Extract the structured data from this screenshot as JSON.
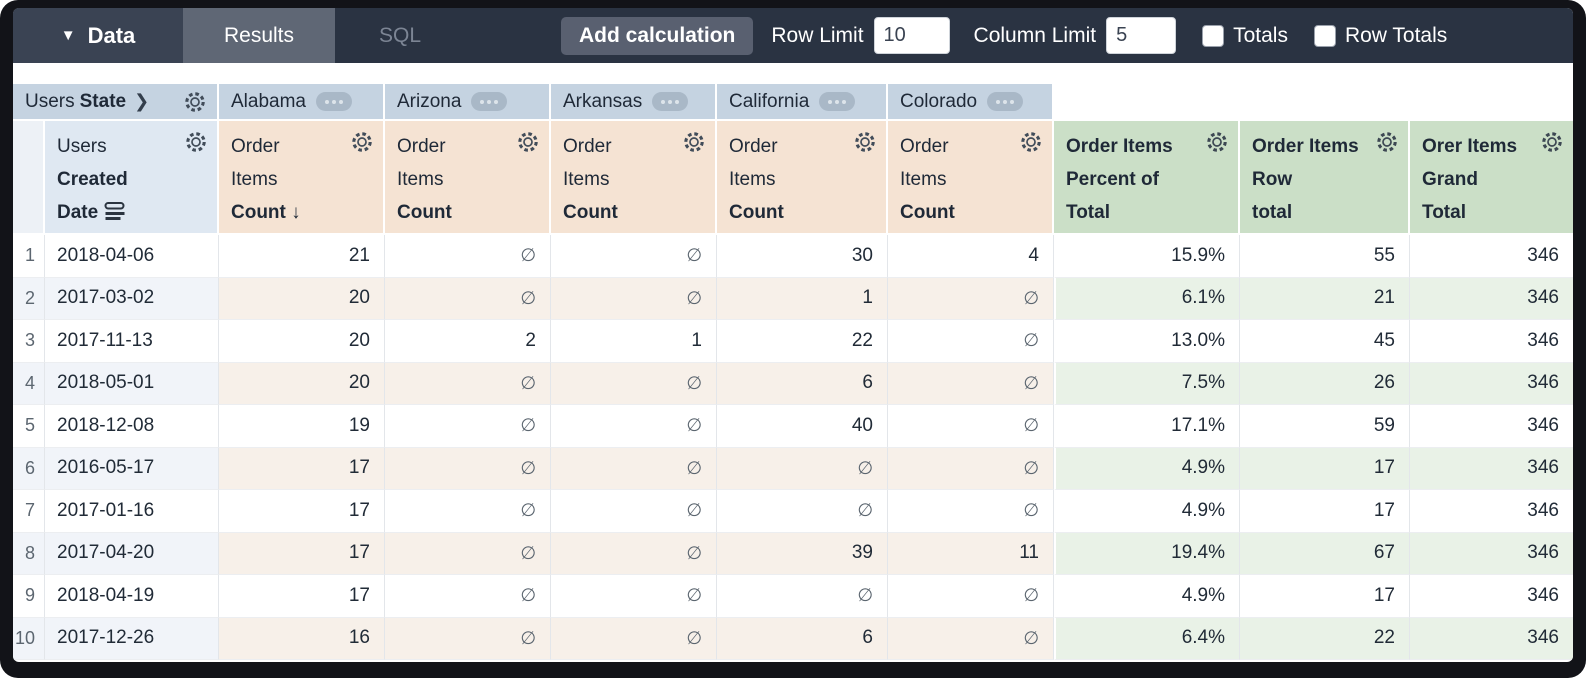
{
  "toolbar": {
    "data_label": "Data",
    "tabs": {
      "results": "Results",
      "sql": "SQL"
    },
    "add_calculation_label": "Add calculation",
    "row_limit_label": "Row Limit",
    "row_limit_value": "10",
    "column_limit_label": "Column Limit",
    "column_limit_value": "5",
    "totals_label": "Totals",
    "row_totals_label": "Row Totals",
    "totals_checked": false,
    "row_totals_checked": false
  },
  "pivot": {
    "dimension_plain": "Users",
    "dimension_bold": "State",
    "chevron": "❯",
    "states": [
      "Alabama",
      "Arizona",
      "Arkansas",
      "California",
      "Colorado"
    ]
  },
  "columns": {
    "row_dimension": {
      "line1": "Users",
      "line2": "Created",
      "line3": "Date"
    },
    "measure": {
      "line1": "Order",
      "line2": "Items",
      "line3": "Count"
    },
    "sort_arrow": "↓",
    "calc_columns": [
      {
        "line1": "Order Items",
        "line2": "Percent of",
        "line3": "Total"
      },
      {
        "line1": "Order Items",
        "line2": "Row",
        "line3": "total"
      },
      {
        "line1": "Orer Items",
        "line2": "Grand",
        "line3": "Total"
      }
    ]
  },
  "table": {
    "null_symbol": "∅",
    "rows": [
      {
        "n": "1",
        "date": "2018-04-06",
        "alabama": "21",
        "arizona": null,
        "arkansas": null,
        "california": "30",
        "colorado": "4",
        "pct": "15.9%",
        "row_total": "55",
        "grand_total": "346"
      },
      {
        "n": "2",
        "date": "2017-03-02",
        "alabama": "20",
        "arizona": null,
        "arkansas": null,
        "california": "1",
        "colorado": null,
        "pct": "6.1%",
        "row_total": "21",
        "grand_total": "346"
      },
      {
        "n": "3",
        "date": "2017-11-13",
        "alabama": "20",
        "arizona": "2",
        "arkansas": "1",
        "california": "22",
        "colorado": null,
        "pct": "13.0%",
        "row_total": "45",
        "grand_total": "346"
      },
      {
        "n": "4",
        "date": "2018-05-01",
        "alabama": "20",
        "arizona": null,
        "arkansas": null,
        "california": "6",
        "colorado": null,
        "pct": "7.5%",
        "row_total": "26",
        "grand_total": "346"
      },
      {
        "n": "5",
        "date": "2018-12-08",
        "alabama": "19",
        "arizona": null,
        "arkansas": null,
        "california": "40",
        "colorado": null,
        "pct": "17.1%",
        "row_total": "59",
        "grand_total": "346"
      },
      {
        "n": "6",
        "date": "2016-05-17",
        "alabama": "17",
        "arizona": null,
        "arkansas": null,
        "california": null,
        "colorado": null,
        "pct": "4.9%",
        "row_total": "17",
        "grand_total": "346"
      },
      {
        "n": "7",
        "date": "2017-01-16",
        "alabama": "17",
        "arizona": null,
        "arkansas": null,
        "california": null,
        "colorado": null,
        "pct": "4.9%",
        "row_total": "17",
        "grand_total": "346"
      },
      {
        "n": "8",
        "date": "2017-04-20",
        "alabama": "17",
        "arizona": null,
        "arkansas": null,
        "california": "39",
        "colorado": "11",
        "pct": "19.4%",
        "row_total": "67",
        "grand_total": "346"
      },
      {
        "n": "9",
        "date": "2018-04-19",
        "alabama": "17",
        "arizona": null,
        "arkansas": null,
        "california": null,
        "colorado": null,
        "pct": "4.9%",
        "row_total": "17",
        "grand_total": "346"
      },
      {
        "n": "10",
        "date": "2017-12-26",
        "alabama": "16",
        "arizona": null,
        "arkansas": null,
        "california": "6",
        "colorado": null,
        "pct": "6.4%",
        "row_total": "22",
        "grand_total": "346"
      }
    ]
  },
  "colors": {
    "topbar_bg": "#2a3342",
    "data_tab_bg": "#3a4353",
    "results_tab_bg": "#5f6775",
    "button_bg": "#596070",
    "pivot_header_bg": "#c5d3e1",
    "dimension_header_bg": "#dfe8f2",
    "measure_header_bg": "#f5e3d3",
    "calc_header_bg": "#cbdfc7",
    "stripe_blue": "#f1f4f9",
    "stripe_tan": "#f7f0e9",
    "stripe_green": "#e9f2e7"
  }
}
